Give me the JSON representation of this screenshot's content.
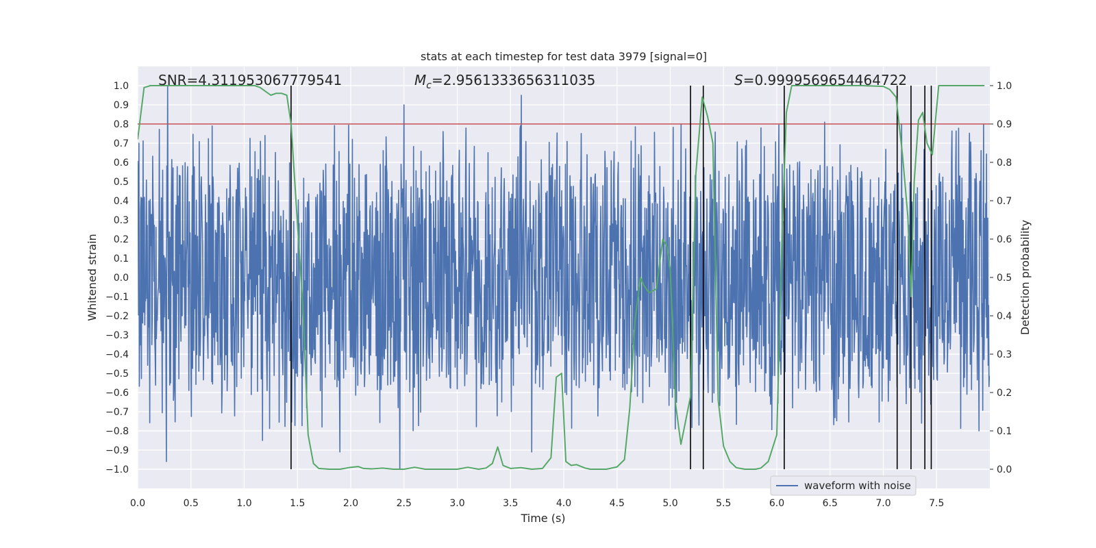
{
  "chart_data": {
    "type": "line",
    "title": "stats at each timestep for test data 3979 [signal=0]",
    "xlabel": "Time (s)",
    "ylabel_left": "Whitened strain",
    "ylabel_right": "Detection probability",
    "xlim": [
      0,
      8
    ],
    "ylim_left": [
      -1.1,
      1.1
    ],
    "ylim_right": [
      -0.05,
      1.05
    ],
    "x_ticks": [
      0.0,
      0.5,
      1.0,
      1.5,
      2.0,
      2.5,
      3.0,
      3.5,
      4.0,
      4.5,
      5.0,
      5.5,
      6.0,
      6.5,
      7.0,
      7.5
    ],
    "x_tick_labels": [
      "0.0",
      "0.5",
      "1.0",
      "1.5",
      "2.0",
      "2.5",
      "3.0",
      "3.5",
      "4.0",
      "4.5",
      "5.0",
      "5.5",
      "6.0",
      "6.5",
      "7.0",
      "7.5"
    ],
    "y_ticks_left": [
      1.0,
      0.9,
      0.8,
      0.7,
      0.6,
      0.5,
      0.4,
      0.3,
      0.2,
      0.1,
      0.0,
      -0.1,
      -0.2,
      -0.3,
      -0.4,
      -0.5,
      -0.6,
      -0.7,
      -0.8,
      -0.9,
      -1.0
    ],
    "y_tick_labels_left": [
      "1.0",
      "0.9",
      "0.8",
      "0.7",
      "0.6",
      "0.5",
      "0.4",
      "0.3",
      "0.2",
      "0.1",
      "0.0",
      "−0.1",
      "−0.2",
      "−0.3",
      "−0.4",
      "−0.5",
      "−0.6",
      "−0.7",
      "−0.8",
      "−0.9",
      "−1.0"
    ],
    "y_ticks_right": [
      1.0,
      0.9,
      0.8,
      0.7,
      0.6,
      0.5,
      0.4,
      0.3,
      0.2,
      0.1,
      0.0
    ],
    "y_tick_labels_right": [
      "1.0",
      "0.9",
      "0.8",
      "0.7",
      "0.6",
      "0.5",
      "0.4",
      "0.3",
      "0.2",
      "0.1",
      "0.0"
    ],
    "annotations": {
      "snr_text": "SNR=4.311953067779541",
      "mc_symbol": "M",
      "mc_subscript": "c",
      "mc_value": "=2.9561333656311035",
      "s_symbol": "S",
      "s_value": "=0.9999569654464722"
    },
    "threshold": {
      "value": 0.9,
      "axis": "right",
      "color": "#c44e52"
    },
    "crossing_lines_x": [
      1.44,
      5.19,
      5.31,
      6.07,
      7.13,
      7.26,
      7.39,
      7.45
    ],
    "waveform": {
      "name": "waveform with noise",
      "color": "#4c72b0",
      "sample_rate_per_s": 256,
      "typical_amplitude": 0.42,
      "spike_peaks": [
        {
          "x": 0.28,
          "y": 1.0
        },
        {
          "x": 0.27,
          "y": -0.96
        },
        {
          "x": 1.17,
          "y": -0.85
        },
        {
          "x": 1.45,
          "y": -0.44
        },
        {
          "x": 1.9,
          "y": -0.91
        },
        {
          "x": 2.5,
          "y": 0.9
        },
        {
          "x": 2.46,
          "y": -1.0
        },
        {
          "x": 3.6,
          "y": 0.95
        },
        {
          "x": 3.7,
          "y": -0.91
        },
        {
          "x": 4.01,
          "y": -0.6
        },
        {
          "x": 5.1,
          "y": 0.8
        },
        {
          "x": 6.07,
          "y": -0.84
        },
        {
          "x": 6.45,
          "y": 0.81
        },
        {
          "x": 7.17,
          "y": 0.8
        },
        {
          "x": 7.9,
          "y": -0.8
        }
      ]
    },
    "probability": {
      "name": "detection probability",
      "color": "#55a868",
      "x": [
        0.0,
        0.06,
        0.12,
        0.2,
        0.4,
        0.6,
        0.8,
        1.0,
        1.1,
        1.15,
        1.2,
        1.25,
        1.3,
        1.35,
        1.4,
        1.44,
        1.5,
        1.55,
        1.6,
        1.65,
        1.7,
        1.8,
        1.9,
        2.0,
        2.07,
        2.12,
        2.2,
        2.3,
        2.4,
        2.5,
        2.6,
        2.7,
        2.8,
        2.9,
        3.0,
        3.1,
        3.2,
        3.27,
        3.33,
        3.38,
        3.43,
        3.5,
        3.6,
        3.7,
        3.8,
        3.88,
        3.93,
        3.98,
        4.02,
        4.07,
        4.12,
        4.2,
        4.25,
        4.3,
        4.4,
        4.5,
        4.57,
        4.62,
        4.67,
        4.72,
        4.75,
        4.8,
        4.87,
        4.93,
        4.97,
        5.0,
        5.05,
        5.1,
        5.14,
        5.19,
        5.24,
        5.3,
        5.35,
        5.4,
        5.45,
        5.5,
        5.56,
        5.62,
        5.7,
        5.8,
        5.85,
        5.92,
        6.0,
        6.05,
        6.09,
        6.14,
        6.2,
        6.4,
        6.6,
        6.8,
        7.0,
        7.06,
        7.12,
        7.18,
        7.23,
        7.26,
        7.29,
        7.33,
        7.37,
        7.41,
        7.46,
        7.52,
        7.6,
        7.8,
        7.95
      ],
      "y": [
        0.86,
        0.995,
        1.0,
        1.0,
        1.0,
        1.0,
        1.0,
        1.0,
        1.0,
        0.995,
        0.985,
        0.975,
        0.98,
        0.98,
        0.975,
        0.9,
        0.64,
        0.43,
        0.09,
        0.015,
        0.002,
        0.0,
        0.0,
        0.005,
        0.007,
        0.002,
        0.001,
        0.003,
        0.0,
        0.0,
        0.005,
        0.0,
        0.0,
        0.0,
        0.0,
        0.005,
        0.0,
        0.003,
        0.015,
        0.058,
        0.01,
        0.002,
        0.004,
        0.0,
        0.002,
        0.03,
        0.24,
        0.25,
        0.02,
        0.01,
        0.012,
        0.003,
        0.0,
        0.0,
        0.0,
        0.006,
        0.025,
        0.16,
        0.39,
        0.5,
        0.48,
        0.46,
        0.47,
        0.6,
        0.58,
        0.52,
        0.17,
        0.065,
        0.12,
        0.19,
        0.77,
        0.97,
        0.92,
        0.85,
        0.18,
        0.06,
        0.02,
        0.004,
        0.0,
        0.0,
        0.003,
        0.02,
        0.09,
        0.62,
        0.93,
        1.0,
        1.0,
        1.0,
        1.0,
        1.0,
        0.998,
        0.99,
        0.97,
        0.82,
        0.66,
        0.45,
        0.75,
        0.91,
        0.93,
        0.85,
        0.82,
        1.0,
        1.0,
        1.0,
        1.0
      ]
    },
    "legend": {
      "entries": [
        "waveform with noise"
      ],
      "location": "lower-right"
    }
  },
  "colors": {
    "plot_background": "#eaeaf2",
    "grid": "#ffffff",
    "waveform": "#4c72b0",
    "probability": "#55a868",
    "threshold": "#c44e52",
    "crossings": "#000000"
  }
}
